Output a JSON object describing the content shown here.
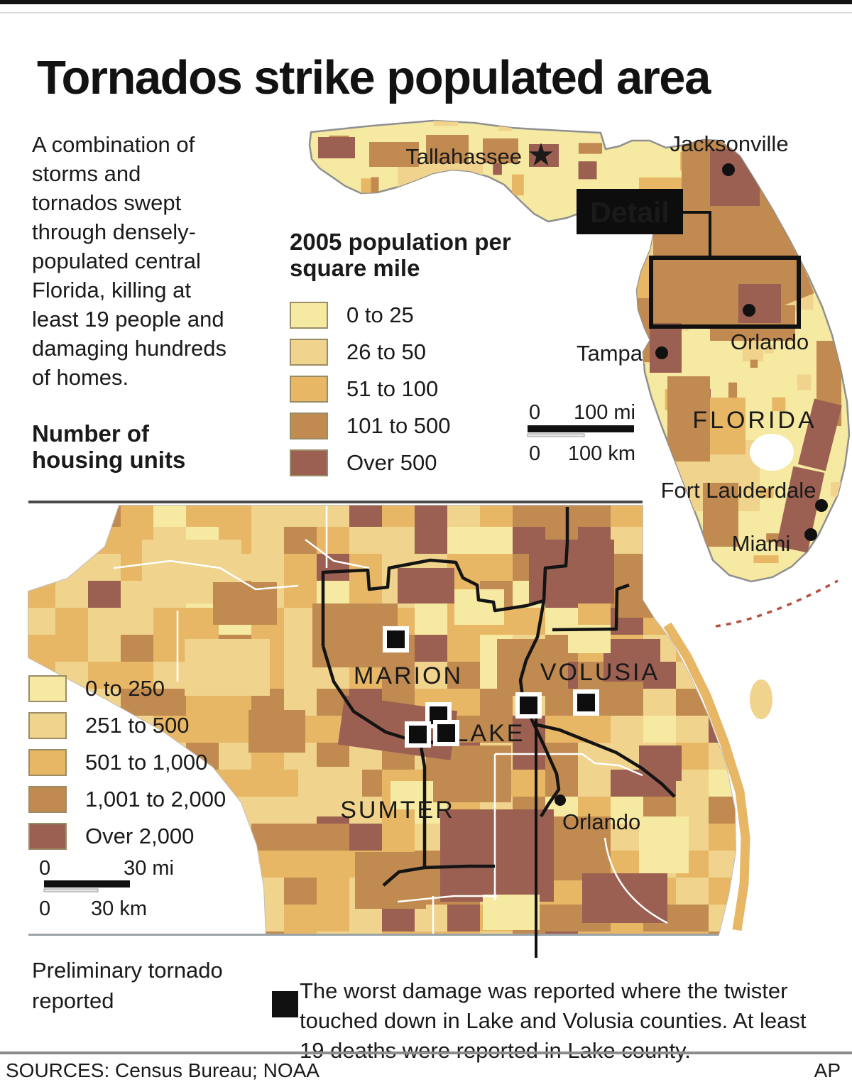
{
  "colors": {
    "c1": "#f6e9a2",
    "c2": "#f0d38c",
    "c3": "#e7b766",
    "c4": "#c08a50",
    "c5": "#9b6051",
    "ink": "#1a1a1a"
  },
  "header": {
    "title": "Tornados strike populated area"
  },
  "intro": "A combination of storms and tornados swept through densely-populated central Florida, killing at least 19 people and damaging hundreds of homes.",
  "pop_legend": {
    "title": "2005 population per square mile",
    "items": [
      {
        "label": "0 to 25"
      },
      {
        "label": "26 to 50"
      },
      {
        "label": "51 to 100"
      },
      {
        "label": "101 to 500"
      },
      {
        "label": "Over 500"
      }
    ]
  },
  "housing_legend": {
    "title": "Number of housing units",
    "items": [
      {
        "label": "0 to 250"
      },
      {
        "label": "251 to 500"
      },
      {
        "label": "501 to 1,000"
      },
      {
        "label": "1,001 to 2,000"
      },
      {
        "label": "Over 2,000"
      }
    ]
  },
  "state_map": {
    "label": "FLORIDA",
    "detail_tag": "Detail",
    "cities": {
      "tallahassee": "Tallahassee",
      "jacksonville": "Jacksonville",
      "tampa": "Tampa",
      "orlando": "Orlando",
      "fort_lauderdale": "Fort Lauderdale",
      "miami": "Miami"
    },
    "scale": {
      "zero": "0",
      "mi": "100 mi",
      "km": "100 km"
    }
  },
  "detail_map": {
    "counties": {
      "marion": "MARION",
      "volusia": "VOLUSIA",
      "lake": "LAKE",
      "sumter": "SUMTER"
    },
    "city": "Orlando",
    "scale": {
      "zero": "0",
      "mi": "30 mi",
      "km": "30 km"
    }
  },
  "tornado_note": {
    "text": "Preliminary tornado reported"
  },
  "caption": "The worst damage was reported where the twister touched down in Lake and Volusia counties. At least 19 deaths were reported in Lake county.",
  "footer": {
    "sources": "SOURCES: Census Bureau; NOAA",
    "credit": "AP"
  }
}
